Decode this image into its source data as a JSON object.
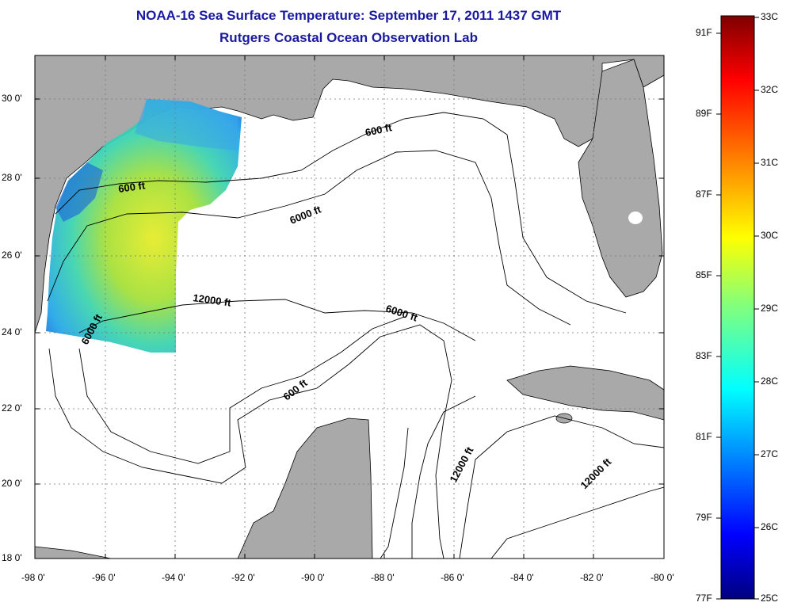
{
  "title": {
    "line1": "NOAA-16 Sea Surface Temperature:  September 17, 2011 1437 GMT",
    "line2": "Rutgers Coastal Ocean Observation Lab"
  },
  "map": {
    "lon_labels": [
      "-98 0'",
      "-96 0'",
      "-94 0'",
      "-92 0'",
      "-90 0'",
      "-88 0'",
      "-86 0'",
      "-84 0'",
      "-82 0'",
      "-80 0'"
    ],
    "lat_labels": [
      "30 0'",
      "28 0'",
      "26 0'",
      "24 0'",
      "22 0'",
      "20 0'",
      "18 0'"
    ],
    "contour_labels": [
      "600 ft",
      "600 ft",
      "6000 ft",
      "6000 ft",
      "6000 ft",
      "12000 ft",
      "600 ft",
      "12000 ft",
      "12000 ft"
    ],
    "colors": {
      "land": "#a9a9a9",
      "ocean": "#ffffff",
      "title": "#1a1aa0"
    }
  },
  "colorbar": {
    "celsius_labels": [
      "33C",
      "32C",
      "31C",
      "30C",
      "29C",
      "28C",
      "27C",
      "26C",
      "25C"
    ],
    "fahrenheit_labels": [
      "91F",
      "89F",
      "87F",
      "85F",
      "83F",
      "81F",
      "79F",
      "77F"
    ],
    "range_c": [
      25,
      33
    ],
    "colormap": "jet"
  }
}
